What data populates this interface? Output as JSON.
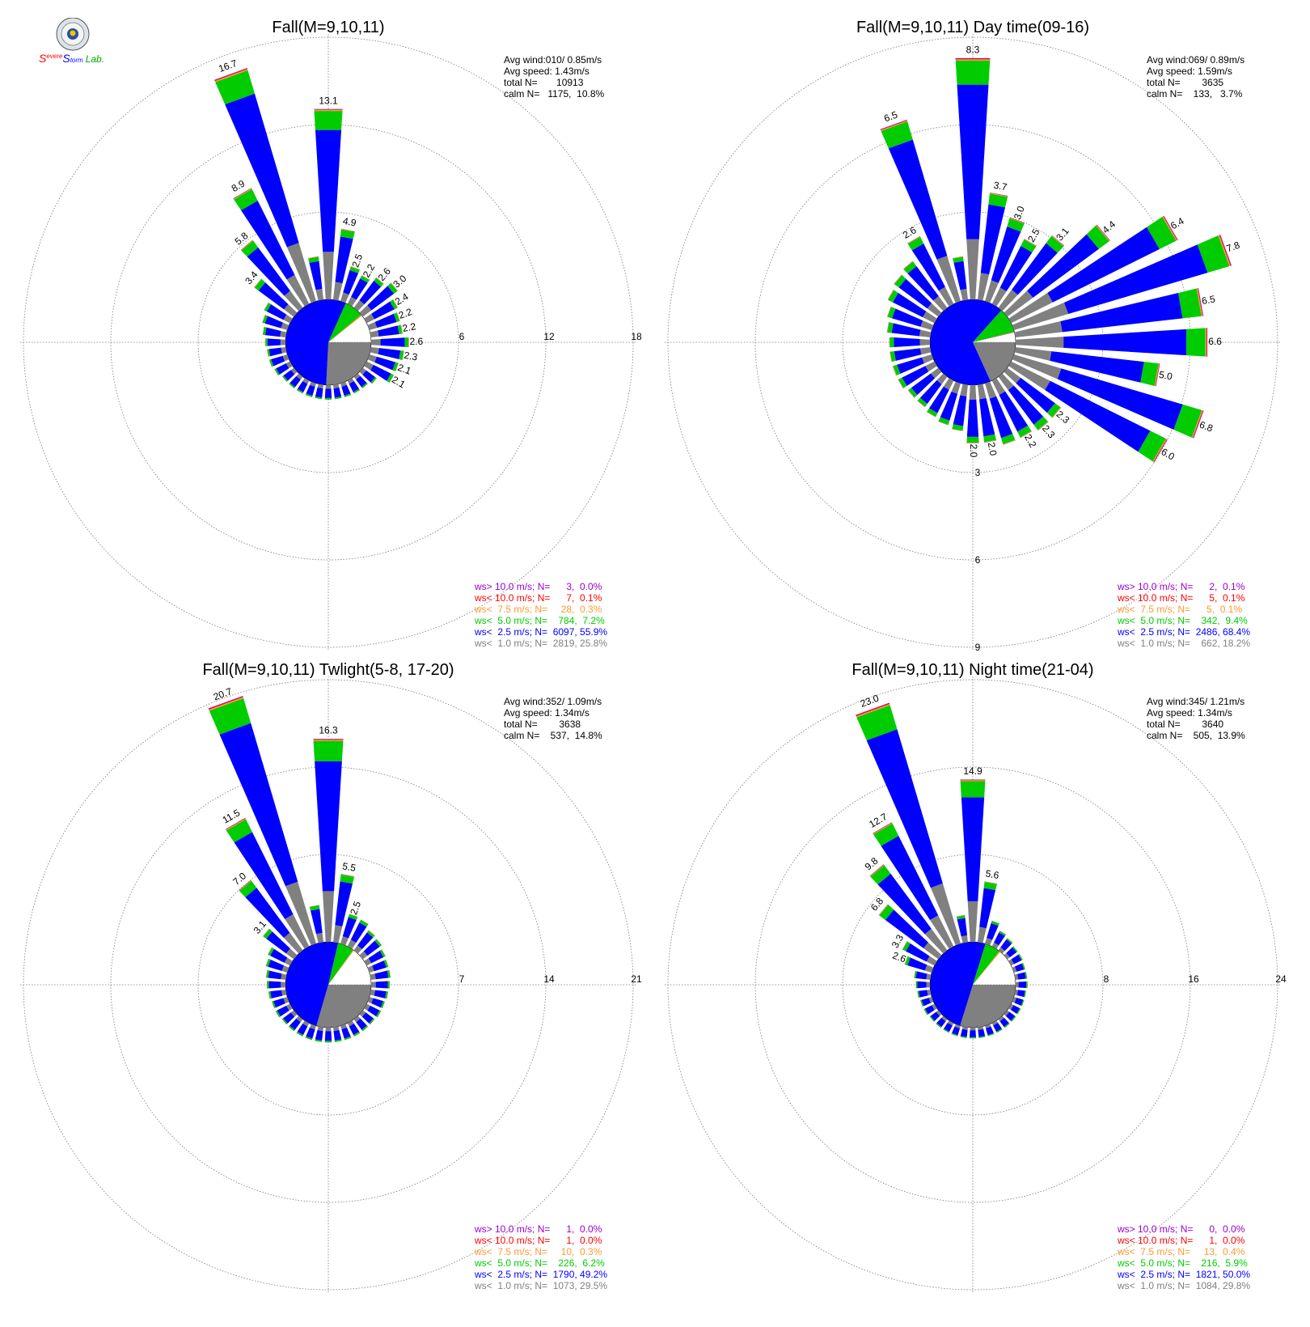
{
  "logo": {
    "text_parts": [
      "S",
      "evere",
      "S",
      "torm",
      "Lab."
    ],
    "colors": [
      "#ff0000",
      "#ff0000",
      "#0000ff",
      "#0000ff",
      "#00aa00"
    ]
  },
  "colors": {
    "gt10": "#9900cc",
    "lt10": "#ff0000",
    "lt75": "#ff9933",
    "lt50": "#00cc00",
    "lt25": "#0000ff",
    "lt10ms": "#808080"
  },
  "chart_data": [
    {
      "type": "wind-rose",
      "title": "Fall(M=9,10,11)",
      "rings": [
        "6",
        "12",
        "18"
      ],
      "rmax": 18,
      "stats": [
        "Avg wind:010/ 0.85m/s",
        "Avg speed: 1.43m/s",
        "total N=       10913",
        "calm N=   1175,  10.8%"
      ],
      "legend": [
        "ws> 10.0 m/s; N=      3,  0.0%",
        "ws< 10.0 m/s; N=      7,  0.1%",
        "ws<  7.5 m/s; N=     28,  0.3%",
        "ws<  5.0 m/s; N=    784,  7.2%",
        "ws<  2.5 m/s; N=  6097, 55.9%",
        "ws<  1.0 m/s; N=  2819, 25.8%"
      ],
      "calm_pie": [
        25.8,
        55.9,
        7.2,
        0.3,
        0.1,
        0.0
      ],
      "directions_deg": [
        0,
        10,
        20,
        30,
        40,
        50,
        60,
        70,
        80,
        90,
        100,
        110,
        120,
        130,
        140,
        150,
        160,
        170,
        180,
        190,
        200,
        210,
        220,
        230,
        240,
        250,
        260,
        270,
        280,
        290,
        300,
        310,
        320,
        330,
        340,
        350
      ],
      "totals": [
        13.1,
        4.9,
        2.5,
        2.2,
        2.6,
        3.0,
        2.4,
        2.2,
        2.2,
        2.6,
        2.3,
        2.1,
        2.1,
        1.2,
        1.0,
        1.0,
        1.0,
        1.0,
        1.0,
        1.0,
        1.0,
        1.0,
        1.0,
        1.0,
        1.2,
        1.3,
        1.3,
        1.4,
        1.6,
        1.8,
        2.0,
        3.4,
        5.8,
        8.9,
        16.7,
        3.0
      ],
      "labels": [
        "13.1",
        "4.9",
        "2.5",
        "2.2",
        "2.6",
        "3.0",
        "2.4",
        "2.2",
        "2.2",
        "2.6",
        "2.3",
        "2.1",
        "2.1",
        "",
        "",
        "",
        "",
        "",
        "",
        "",
        "",
        "",
        "",
        "",
        "",
        "",
        "",
        "",
        "",
        "",
        "",
        "3.4",
        "5.8",
        "8.9",
        "16.7",
        ""
      ]
    },
    {
      "type": "wind-rose",
      "title": "Fall(M=9,10,11) Day time(09-16)",
      "rings": [
        "3",
        "6",
        "9"
      ],
      "rmax": 9,
      "ring_label_direction": "down",
      "stats": [
        "Avg wind:069/ 0.89m/s",
        "Avg speed: 1.59m/s",
        "total N=        3635",
        "calm N=    133,   3.7%"
      ],
      "legend": [
        "ws> 10.0 m/s; N=      2,  0.1%",
        "ws< 10.0 m/s; N=      5,  0.1%",
        "ws<  7.5 m/s; N=      5,  0.1%",
        "ws<  5.0 m/s; N=    342,  9.4%",
        "ws<  2.5 m/s; N=  2486, 68.4%",
        "ws<  1.0 m/s; N=    662, 18.2%"
      ],
      "calm_pie": [
        18.2,
        68.4,
        9.4,
        0.1,
        0.1,
        0.1
      ],
      "directions_deg": [
        0,
        10,
        20,
        30,
        40,
        50,
        60,
        70,
        80,
        90,
        100,
        110,
        120,
        130,
        140,
        150,
        160,
        170,
        180,
        190,
        200,
        210,
        220,
        230,
        240,
        250,
        260,
        270,
        280,
        290,
        300,
        310,
        320,
        330,
        340,
        350
      ],
      "totals": [
        8.3,
        3.7,
        3.0,
        2.5,
        3.1,
        4.4,
        6.4,
        7.8,
        6.5,
        6.6,
        5.0,
        6.8,
        6.0,
        2.3,
        2.3,
        2.2,
        2.2,
        2.0,
        2.0,
        1.6,
        1.5,
        1.4,
        1.3,
        1.3,
        1.4,
        1.4,
        1.4,
        1.4,
        1.5,
        1.6,
        1.8,
        1.9,
        2.0,
        2.6,
        6.5,
        1.5
      ],
      "labels": [
        "8.3",
        "3.7",
        "3.0",
        "2.5",
        "3.1",
        "4.4",
        "6.4",
        "7.8",
        "6.5",
        "6.6",
        "5.0",
        "6.8",
        "6.0",
        "2.3",
        "2.3",
        "2.2",
        "",
        "2.0",
        "2.0",
        "",
        "",
        "",
        "",
        "",
        "",
        "",
        "",
        "",
        "",
        "",
        "",
        "",
        "",
        "2.6",
        "6.5",
        ""
      ]
    },
    {
      "type": "wind-rose",
      "title": "Fall(M=9,10,11) Twlight(5-8, 17-20)",
      "rings": [
        "7",
        "14",
        "21"
      ],
      "rmax": 21,
      "stats": [
        "Avg wind:352/ 1.09m/s",
        "Avg speed: 1.34m/s",
        "total N=        3638",
        "calm N=    537,  14.8%"
      ],
      "legend": [
        "ws> 10.0 m/s; N=      1,  0.0%",
        "ws< 10.0 m/s; N=      1,  0.0%",
        "ws<  7.5 m/s; N=     10,  0.3%",
        "ws<  5.0 m/s; N=    226,  6.2%",
        "ws<  2.5 m/s; N=  1790, 49.2%",
        "ws<  1.0 m/s; N=  1073, 29.5%"
      ],
      "calm_pie": [
        29.5,
        49.2,
        6.2,
        0.3,
        0.0,
        0.0
      ],
      "directions_deg": [
        0,
        10,
        20,
        30,
        40,
        50,
        60,
        70,
        80,
        90,
        100,
        110,
        120,
        130,
        140,
        150,
        160,
        170,
        180,
        190,
        200,
        210,
        220,
        230,
        240,
        250,
        260,
        270,
        280,
        290,
        300,
        310,
        320,
        330,
        340,
        350
      ],
      "totals": [
        16.3,
        5.5,
        2.5,
        2.4,
        2.0,
        1.9,
        1.7,
        1.6,
        1.6,
        1.5,
        1.4,
        1.3,
        1.3,
        1.2,
        1.2,
        1.2,
        1.2,
        1.2,
        1.2,
        1.2,
        1.2,
        1.2,
        1.2,
        1.2,
        1.3,
        1.3,
        1.4,
        1.5,
        1.6,
        1.8,
        2.0,
        3.1,
        7.0,
        11.5,
        20.7,
        3.0
      ],
      "labels": [
        "16.3",
        "5.5",
        "2.5",
        "",
        "",
        "",
        "",
        "",
        "",
        "",
        "",
        "",
        "",
        "",
        "",
        "",
        "",
        "",
        "",
        "",
        "",
        "",
        "",
        "",
        "",
        "",
        "",
        "",
        "",
        "",
        "",
        "3.1",
        "7.0",
        "11.5",
        "20.7",
        ""
      ]
    },
    {
      "type": "wind-rose",
      "title": "Fall(M=9,10,11) Night time(21-04)",
      "rings": [
        "8",
        "16",
        "24"
      ],
      "rmax": 24,
      "stats": [
        "Avg wind:345/ 1.21m/s",
        "Avg speed: 1.34m/s",
        "total N=        3640",
        "calm N=    505,  13.9%"
      ],
      "legend": [
        "ws> 10.0 m/s; N=      0,  0.0%",
        "ws< 10.0 m/s; N=      1,  0.0%",
        "ws<  7.5 m/s; N=     13,  0.4%",
        "ws<  5.0 m/s; N=    216,  5.9%",
        "ws<  2.5 m/s; N=  1821, 50.0%",
        "ws<  1.0 m/s; N=  1084, 29.8%"
      ],
      "calm_pie": [
        29.8,
        50.0,
        5.9,
        0.4,
        0.0,
        0.0
      ],
      "directions_deg": [
        0,
        10,
        20,
        30,
        40,
        50,
        60,
        70,
        80,
        90,
        100,
        110,
        120,
        130,
        140,
        150,
        160,
        170,
        180,
        190,
        200,
        210,
        220,
        230,
        240,
        250,
        260,
        270,
        280,
        290,
        300,
        310,
        320,
        330,
        340,
        350
      ],
      "totals": [
        14.9,
        5.6,
        2.2,
        1.6,
        1.4,
        1.2,
        1.2,
        1.1,
        1.1,
        1.1,
        1.0,
        1.0,
        1.0,
        1.0,
        1.0,
        1.0,
        1.0,
        1.0,
        1.0,
        1.0,
        1.0,
        1.0,
        1.0,
        1.0,
        1.1,
        1.1,
        1.2,
        1.3,
        1.5,
        2.6,
        3.3,
        6.8,
        9.8,
        12.7,
        23.0,
        2.5
      ],
      "labels": [
        "14.9",
        "5.6",
        "",
        "",
        "",
        "",
        "",
        "",
        "",
        "",
        "",
        "",
        "",
        "",
        "",
        "",
        "",
        "",
        "",
        "",
        "",
        "",
        "",
        "",
        "",
        "",
        "",
        "",
        "",
        "2.6",
        "3.3",
        "6.8",
        "9.8",
        "12.7",
        "23.0",
        ""
      ]
    }
  ]
}
